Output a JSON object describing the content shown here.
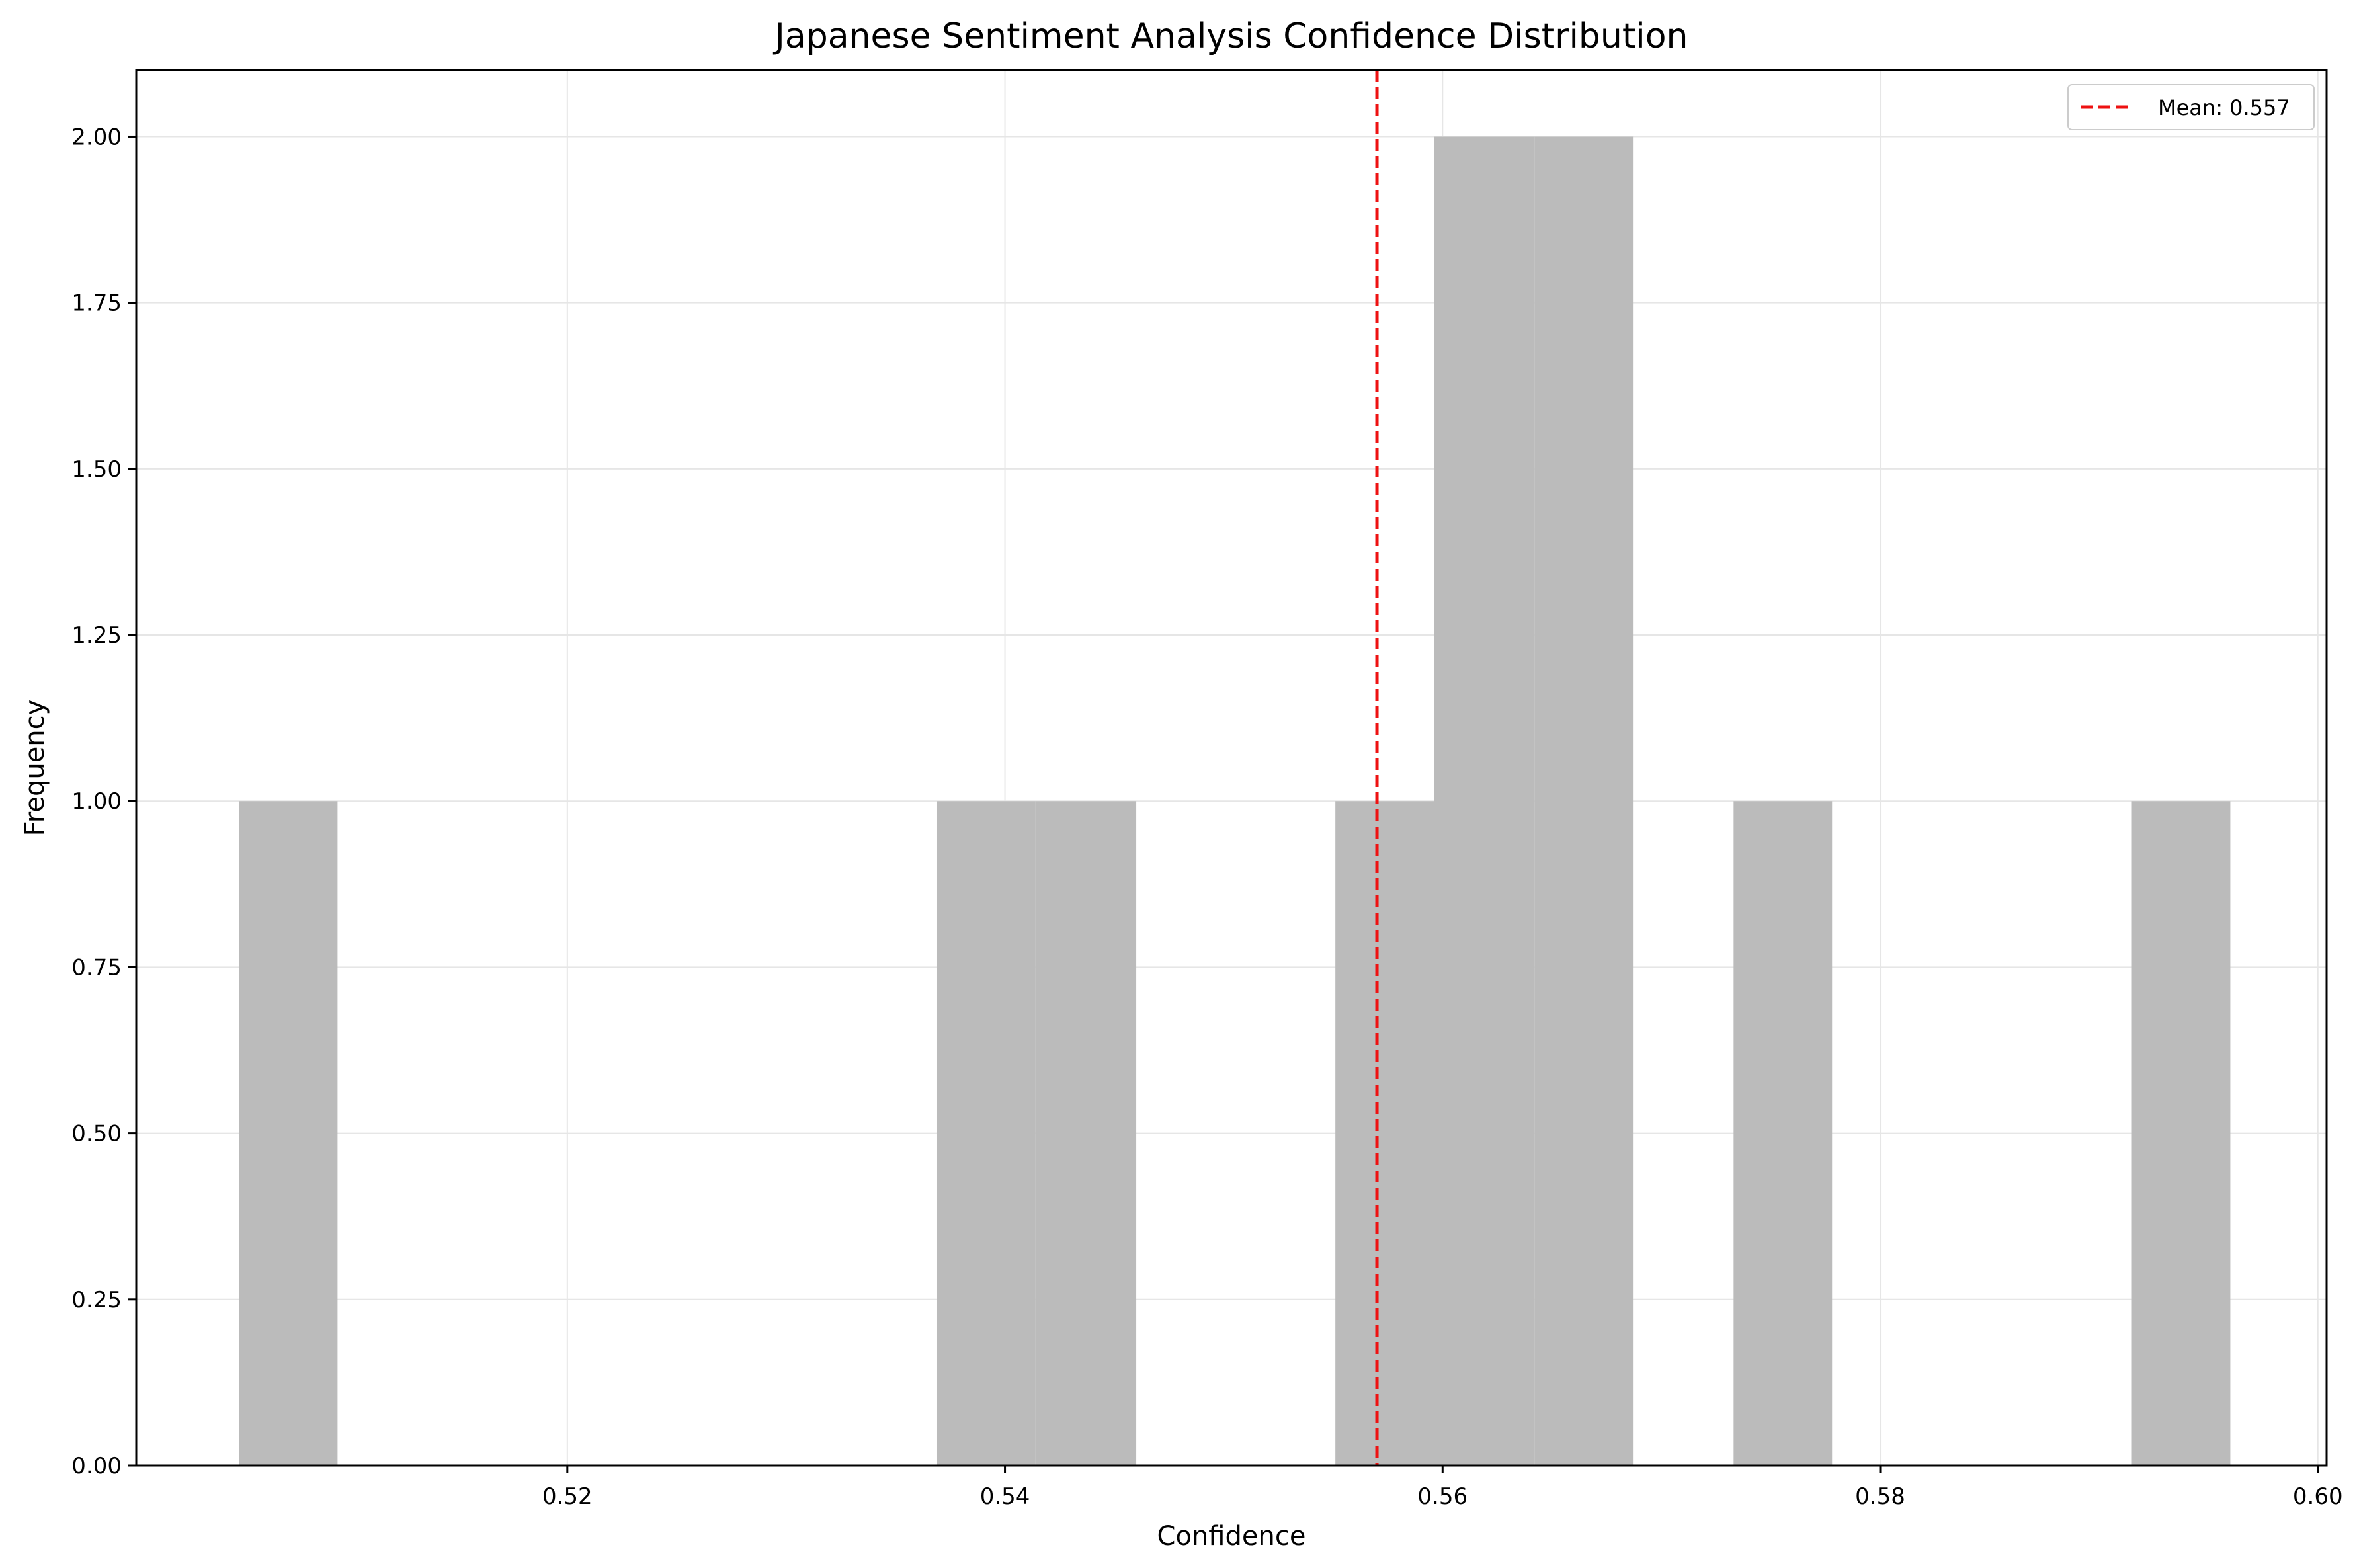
{
  "chart_data": {
    "type": "bar",
    "title": "Japanese Sentiment Analysis Confidence Distribution",
    "xlabel": "Confidence",
    "ylabel": "Frequency",
    "xlim": [
      0.5003,
      0.6004
    ],
    "ylim": [
      0,
      2.1
    ],
    "xticks": [
      0.52,
      0.54,
      0.56,
      0.58,
      0.6
    ],
    "xtick_labels": [
      "0.52",
      "0.54",
      "0.56",
      "0.58",
      "0.60"
    ],
    "yticks": [
      0,
      0.25,
      0.5,
      0.75,
      1.0,
      1.25,
      1.5,
      1.75,
      2.0
    ],
    "ytick_labels": [
      "0.00",
      "0.25",
      "0.50",
      "0.75",
      "1.00",
      "1.25",
      "1.50",
      "1.75",
      "2.00"
    ],
    "grid": true,
    "bar_color": "#bbbbbb",
    "bins": [
      {
        "x0": 0.505,
        "x1": 0.5095,
        "count": 1
      },
      {
        "x0": 0.5369,
        "x1": 0.5414,
        "count": 1
      },
      {
        "x0": 0.5414,
        "x1": 0.546,
        "count": 1
      },
      {
        "x0": 0.5551,
        "x1": 0.5596,
        "count": 1
      },
      {
        "x0": 0.5596,
        "x1": 0.5642,
        "count": 2
      },
      {
        "x0": 0.5642,
        "x1": 0.5687,
        "count": 2
      },
      {
        "x0": 0.5733,
        "x1": 0.5778,
        "count": 1
      },
      {
        "x0": 0.5915,
        "x1": 0.596,
        "count": 1
      }
    ],
    "mean_line": {
      "value": 0.557,
      "label": "Mean: 0.557",
      "color": "#ee1111"
    },
    "legend_position": "top-right"
  }
}
